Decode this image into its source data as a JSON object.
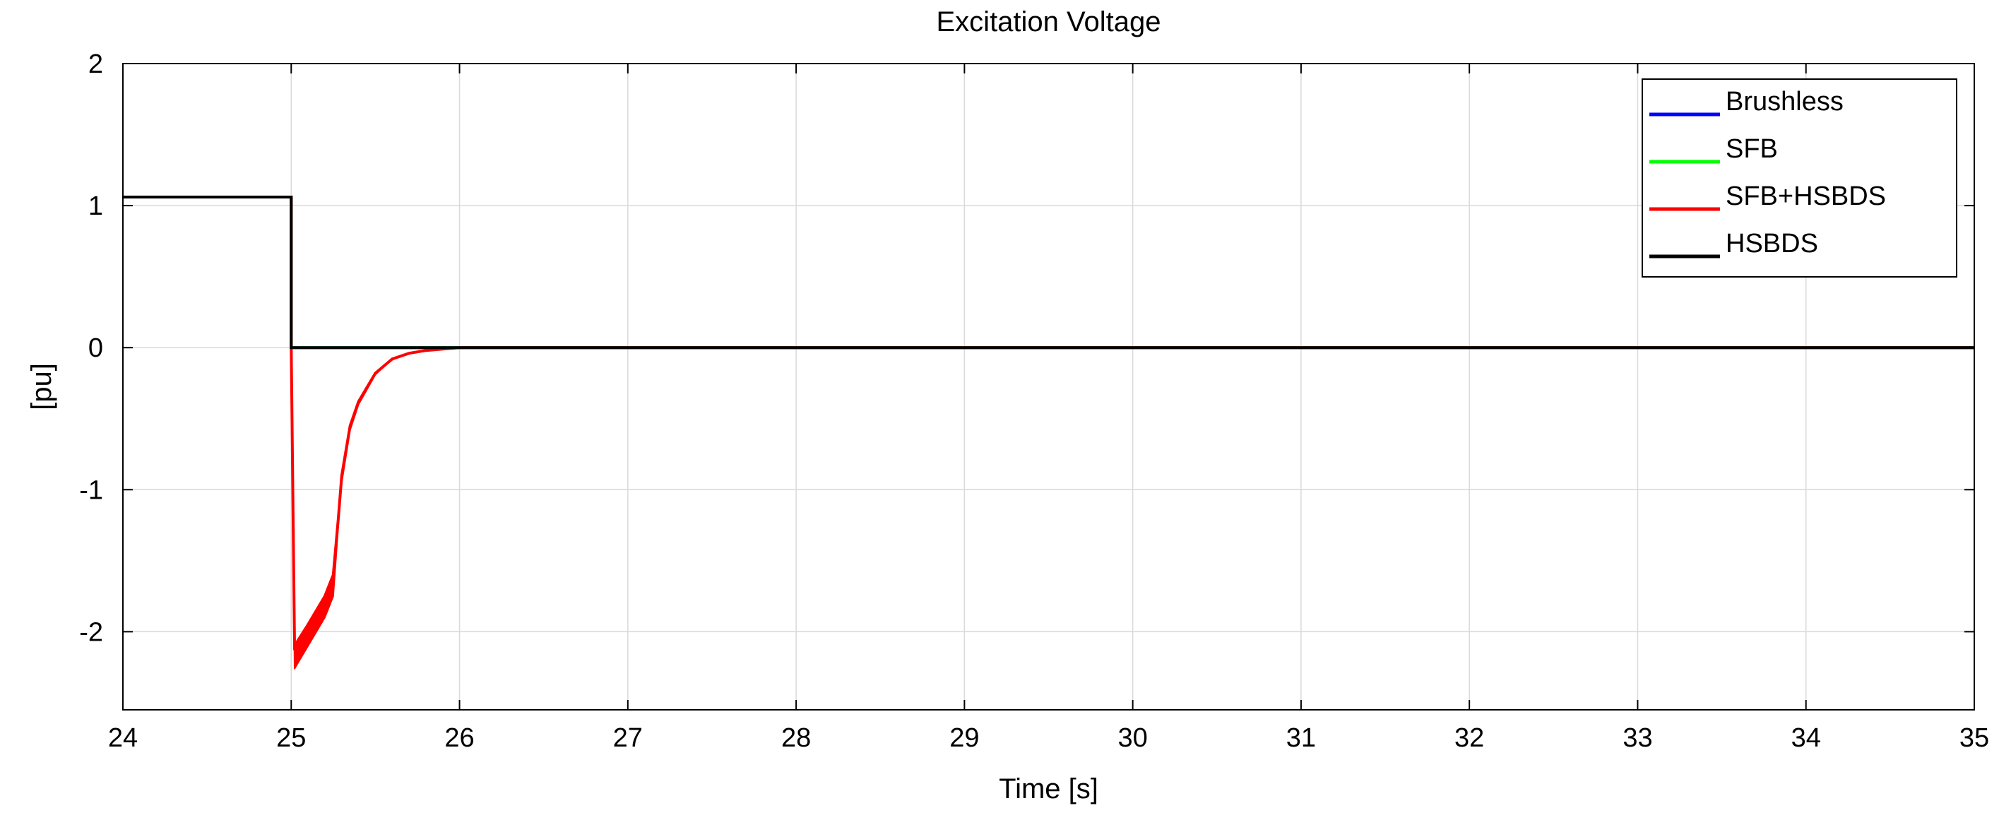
{
  "chart_data": {
    "type": "line",
    "title": "Excitation Voltage",
    "xlabel": "Time [s]",
    "ylabel": "[pu]",
    "xlim": [
      24,
      35
    ],
    "ylim": [
      -2.55,
      2
    ],
    "xticks": [
      24,
      25,
      26,
      27,
      28,
      29,
      30,
      31,
      32,
      33,
      34,
      35
    ],
    "yticks": [
      -2,
      -1,
      0,
      1,
      2
    ],
    "grid": true,
    "legend_position": "top-right",
    "colors": {
      "Brushless": "#0000ff",
      "SFB": "#00ff00",
      "SFB+HSBDS": "#ff0000",
      "HSBDS": "#000000"
    },
    "series": [
      {
        "name": "Brushless",
        "x": [
          24,
          25,
          25,
          35
        ],
        "y": [
          1.06,
          1.06,
          0.0,
          0.0
        ]
      },
      {
        "name": "SFB",
        "x": [
          24,
          25,
          25,
          35
        ],
        "y": [
          1.06,
          1.06,
          0.0,
          0.0
        ]
      },
      {
        "name": "SFB+HSBDS",
        "x": [
          24,
          25,
          25,
          25.02,
          25.1,
          25.2,
          25.25,
          25.28,
          25.3,
          25.35,
          25.4,
          25.5,
          25.6,
          25.7,
          25.8,
          25.9,
          26.0,
          35
        ],
        "y": [
          1.06,
          1.06,
          0.0,
          -2.1,
          -1.95,
          -1.75,
          -1.6,
          -1.2,
          -0.9,
          -0.55,
          -0.38,
          -0.18,
          -0.08,
          -0.04,
          -0.02,
          -0.01,
          0.0,
          0.0
        ],
        "envelope_low": [
          1.06,
          1.06,
          0.0,
          -2.26,
          -2.1,
          -1.9,
          -1.75,
          -1.25,
          -0.95,
          -0.58,
          -0.4,
          -0.19,
          -0.08,
          -0.04,
          -0.02,
          -0.01,
          0.0,
          0.0
        ]
      },
      {
        "name": "HSBDS",
        "x": [
          24,
          25,
          25,
          35
        ],
        "y": [
          1.06,
          1.06,
          0.0,
          0.0
        ]
      }
    ]
  }
}
